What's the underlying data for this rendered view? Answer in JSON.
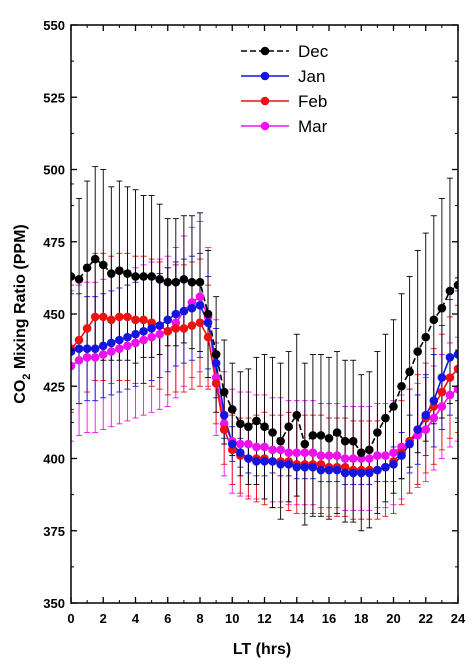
{
  "chart_data": {
    "type": "line",
    "xlabel": "LT (hrs)",
    "ylabel_main": "CO",
    "ylabel_sub": "2",
    "ylabel_rest": " Mixing Ratio  (PPM)",
    "xlim": [
      0,
      24
    ],
    "ylim": [
      350,
      550
    ],
    "xticks": [
      0,
      2,
      4,
      6,
      8,
      10,
      12,
      14,
      16,
      18,
      20,
      22,
      24
    ],
    "yticks": [
      350,
      375,
      400,
      425,
      450,
      475,
      500,
      525,
      550
    ],
    "legend_position": "top-center",
    "grid": false,
    "x": [
      0,
      0.5,
      1,
      1.5,
      2,
      2.5,
      3,
      3.5,
      4,
      4.5,
      5,
      5.5,
      6,
      6.5,
      7,
      7.5,
      8,
      8.5,
      9,
      9.5,
      10,
      10.5,
      11,
      11.5,
      12,
      12.5,
      13,
      13.5,
      14,
      14.5,
      15,
      15.5,
      16,
      16.5,
      17,
      17.5,
      18,
      18.5,
      19,
      19.5,
      20,
      20.5,
      21,
      21.5,
      22,
      22.5,
      23,
      23.5,
      24
    ],
    "series": [
      {
        "name": "Dec",
        "color": "#000000",
        "dash": "6,3",
        "values": [
          463,
          462,
          466,
          469,
          467,
          464,
          465,
          464,
          463,
          463,
          463,
          462,
          461,
          461,
          462,
          461,
          461,
          450,
          436,
          423,
          417,
          412,
          411,
          413,
          411,
          409,
          406,
          411,
          415,
          405,
          408,
          408,
          407,
          409,
          406,
          406,
          402,
          403,
          409,
          414,
          418,
          425,
          430,
          437,
          442,
          448,
          452,
          458,
          460
        ],
        "err": [
          32,
          28,
          30,
          32,
          33,
          30,
          31,
          30,
          30,
          28,
          28,
          26,
          22,
          22,
          22,
          23,
          24,
          22,
          20,
          18,
          16,
          18,
          20,
          22,
          25,
          26,
          27,
          26,
          28,
          28,
          28,
          28,
          28,
          28,
          28,
          28,
          27,
          27,
          28,
          29,
          30,
          32,
          33,
          35,
          36,
          36,
          38,
          39,
          40
        ]
      },
      {
        "name": "Jan",
        "color": "#1515e0",
        "dash": "",
        "values": [
          437,
          438,
          438,
          438,
          439,
          440,
          441,
          442,
          443,
          444,
          445,
          446,
          448,
          450,
          451,
          452,
          453,
          447,
          433,
          415,
          405,
          402,
          400,
          399,
          399,
          399,
          398,
          398,
          397,
          397,
          397,
          396,
          396,
          396,
          395,
          395,
          395,
          395,
          396,
          397,
          398,
          401,
          405,
          410,
          415,
          420,
          428,
          435,
          436
        ],
        "err": [
          20,
          19,
          18,
          18,
          18,
          18,
          18,
          18,
          18,
          18,
          18,
          18,
          18,
          18,
          18,
          18,
          18,
          16,
          12,
          8,
          6,
          5,
          5,
          5,
          5,
          4,
          4,
          4,
          4,
          4,
          4,
          4,
          4,
          4,
          4,
          4,
          4,
          4,
          4,
          5,
          6,
          8,
          10,
          12,
          14,
          16,
          18,
          20,
          22
        ]
      },
      {
        "name": "Feb",
        "color": "#ee1111",
        "dash": "",
        "values": [
          438,
          441,
          445,
          449,
          449,
          448,
          449,
          449,
          448,
          448,
          447,
          446,
          444,
          445,
          445,
          446,
          447,
          442,
          426,
          410,
          403,
          401,
          400,
          400,
          400,
          399,
          399,
          399,
          398,
          398,
          398,
          398,
          397,
          397,
          397,
          396,
          396,
          396,
          396,
          397,
          399,
          402,
          406,
          410,
          414,
          418,
          423,
          428,
          431
        ],
        "err": [
          22,
          22,
          22,
          22,
          22,
          22,
          22,
          22,
          22,
          22,
          22,
          22,
          22,
          22,
          22,
          22,
          22,
          18,
          14,
          12,
          12,
          13,
          14,
          15,
          16,
          16,
          16,
          17,
          17,
          17,
          17,
          17,
          17,
          17,
          17,
          17,
          17,
          17,
          17,
          17,
          18,
          18,
          18,
          19,
          19,
          20,
          20,
          21,
          22
        ]
      },
      {
        "name": "Mar",
        "color": "#ee11ee",
        "dash": "",
        "values": [
          432,
          434,
          435,
          435,
          436,
          437,
          438,
          439,
          440,
          441,
          442,
          443,
          444,
          447,
          451,
          454,
          456,
          449,
          428,
          412,
          406,
          405,
          405,
          404,
          404,
          403,
          403,
          402,
          402,
          402,
          402,
          401,
          401,
          401,
          400,
          400,
          400,
          400,
          401,
          401,
          402,
          404,
          406,
          408,
          410,
          414,
          418,
          422,
          424
        ],
        "err": [
          26,
          26,
          26,
          26,
          26,
          26,
          26,
          26,
          26,
          26,
          26,
          26,
          26,
          26,
          26,
          26,
          26,
          24,
          20,
          18,
          18,
          18,
          18,
          18,
          18,
          18,
          18,
          18,
          18,
          18,
          18,
          18,
          18,
          18,
          18,
          18,
          18,
          18,
          18,
          18,
          18,
          18,
          18,
          18,
          18,
          18,
          18,
          18,
          18
        ]
      }
    ]
  }
}
